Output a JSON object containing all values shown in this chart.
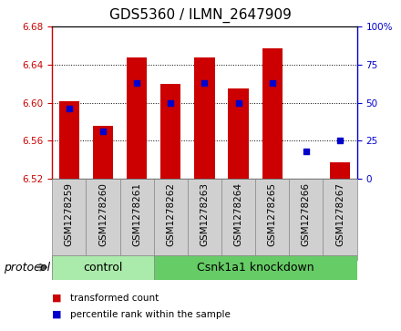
{
  "title": "GDS5360 / ILMN_2647909",
  "samples": [
    "GSM1278259",
    "GSM1278260",
    "GSM1278261",
    "GSM1278262",
    "GSM1278263",
    "GSM1278264",
    "GSM1278265",
    "GSM1278266",
    "GSM1278267"
  ],
  "transformed_count": [
    6.601,
    6.576,
    6.647,
    6.62,
    6.647,
    6.615,
    6.657,
    6.516,
    6.537
  ],
  "percentile_rank": [
    46,
    31,
    63,
    50,
    63,
    50,
    63,
    18,
    25
  ],
  "ylim_left": [
    6.52,
    6.68
  ],
  "ylim_right": [
    0,
    100
  ],
  "yticks_left": [
    6.52,
    6.56,
    6.6,
    6.64,
    6.68
  ],
  "yticks_right": [
    0,
    25,
    50,
    75,
    100
  ],
  "bar_bottom": 6.52,
  "bar_color": "#cc0000",
  "dot_color": "#0000cc",
  "bar_width": 0.6,
  "groups": [
    {
      "label": "control",
      "start": 0,
      "end": 2
    },
    {
      "label": "Csnk1a1 knockdown",
      "start": 3,
      "end": 8
    }
  ],
  "group_color_light": "#aaeaaa",
  "group_color_dark": "#66cc66",
  "protocol_label": "protocol",
  "legend_items": [
    {
      "label": "transformed count",
      "color": "#cc0000"
    },
    {
      "label": "percentile rank within the sample",
      "color": "#0000cc"
    }
  ],
  "bg_color": "#ffffff",
  "plot_bg_color": "#ffffff",
  "tick_color_left": "#cc0000",
  "tick_color_right": "#0000cc",
  "title_fontsize": 11,
  "axis_fontsize": 7.5,
  "label_fontsize": 9,
  "xtick_bg_color": "#d0d0d0",
  "xtick_border_color": "#888888"
}
